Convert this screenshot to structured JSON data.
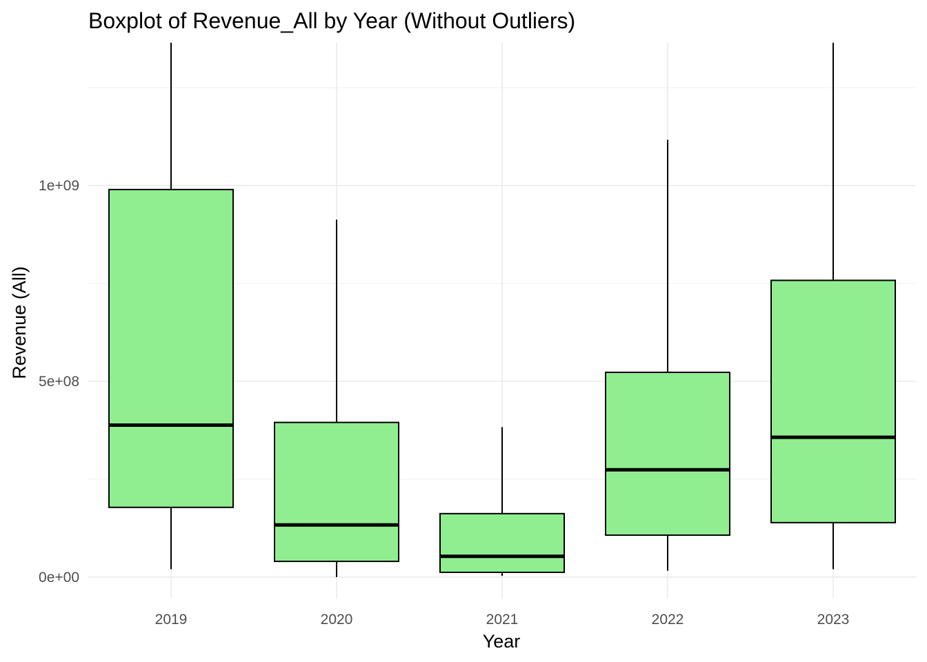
{
  "chart_data": {
    "type": "boxplot",
    "title": "Boxplot of Revenue_All by Year (Without Outliers)",
    "xlabel": "Year",
    "ylabel": "Revenue (All)",
    "categories": [
      "2019",
      "2020",
      "2021",
      "2022",
      "2023"
    ],
    "y_ticks": [
      0,
      500000000,
      1000000000
    ],
    "y_tick_labels": [
      "0e+00",
      "5e+08",
      "1e+09"
    ],
    "ylim": [
      -55000000,
      1365000000
    ],
    "boxes": [
      {
        "category": "2019",
        "min": 20000000,
        "q1": 178000000,
        "median": 388000000,
        "q3": 990000000,
        "max": 1365000000
      },
      {
        "category": "2020",
        "min": 0,
        "q1": 40000000,
        "median": 133000000,
        "q3": 395000000,
        "max": 913000000
      },
      {
        "category": "2021",
        "min": 3000000,
        "q1": 12000000,
        "median": 53000000,
        "q3": 162000000,
        "max": 383000000
      },
      {
        "category": "2022",
        "min": 16000000,
        "q1": 107000000,
        "median": 274000000,
        "q3": 523000000,
        "max": 1117000000
      },
      {
        "category": "2023",
        "min": 20000000,
        "q1": 139000000,
        "median": 357000000,
        "q3": 758000000,
        "max": 1365000000
      }
    ],
    "fill_color": "#90ee90",
    "grid": true,
    "legend": "none"
  }
}
